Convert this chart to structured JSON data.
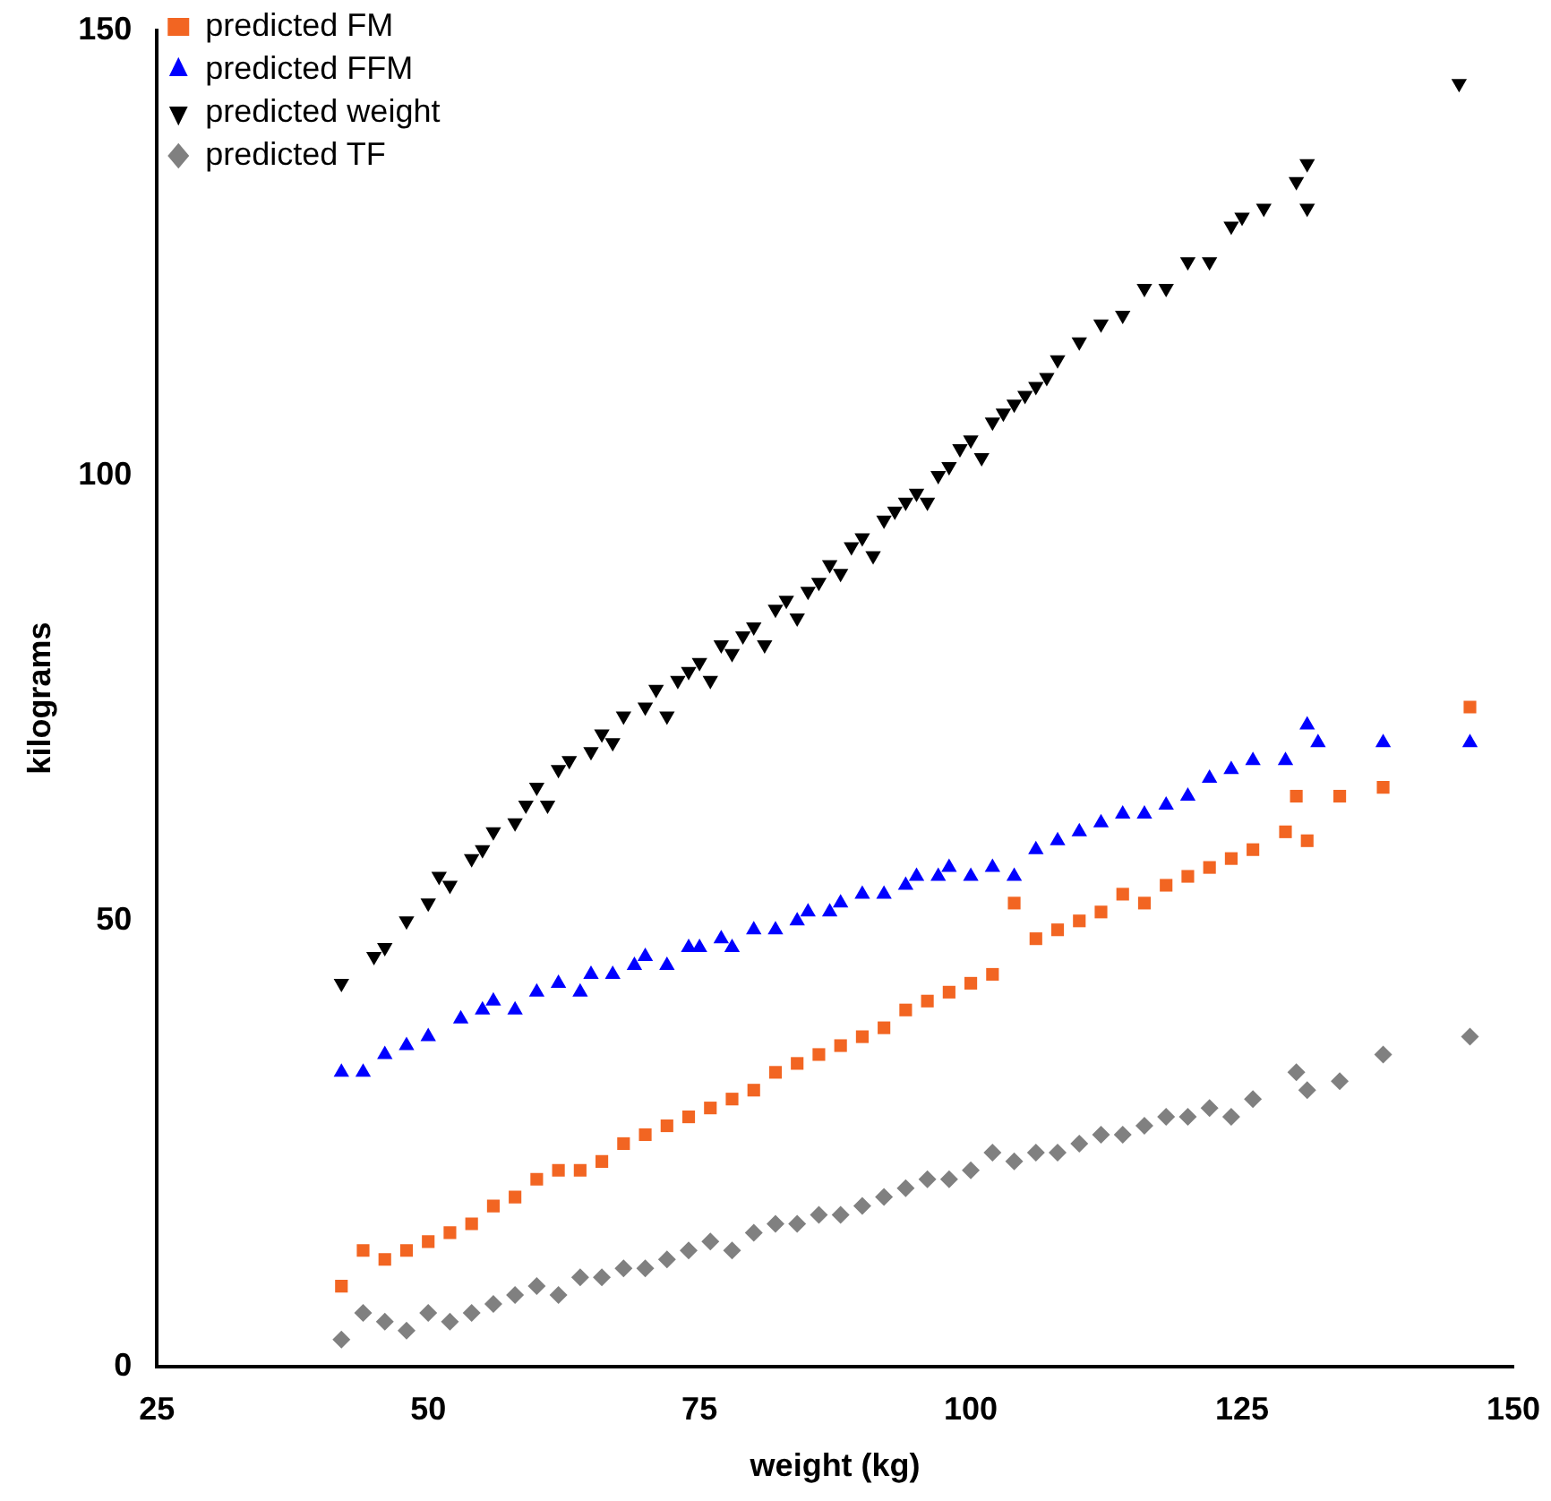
{
  "chart_data": {
    "type": "scatter",
    "xlabel": "weight (kg)",
    "ylabel": "kilograms",
    "xlim": [
      25,
      150
    ],
    "xticks": [
      25,
      50,
      75,
      100,
      125,
      150
    ],
    "ylim": [
      0,
      150
    ],
    "yticks": [
      0,
      50,
      100,
      150
    ],
    "grid": false,
    "legend": "top left",
    "series": [
      {
        "name": "predicted FM",
        "color": "#f26522",
        "marker": "square",
        "x": [
          42,
          44,
          46,
          48,
          50,
          52,
          54,
          56,
          58,
          60,
          62,
          64,
          66,
          68,
          70,
          72,
          74,
          76,
          78,
          80,
          82,
          84,
          86,
          88,
          90,
          92,
          94,
          96,
          98,
          100,
          102,
          104,
          106,
          108,
          110,
          112,
          114,
          116,
          118,
          120,
          122,
          124,
          126,
          129,
          130,
          131,
          134,
          138,
          146
        ],
        "values": [
          9,
          13,
          12,
          13,
          14,
          15,
          16,
          18,
          19,
          21,
          22,
          22,
          23,
          25,
          26,
          27,
          28,
          29,
          30,
          31,
          33,
          34,
          35,
          36,
          37,
          38,
          40,
          41,
          42,
          43,
          44,
          52,
          48,
          49,
          50,
          51,
          53,
          52,
          54,
          55,
          56,
          57,
          58,
          60,
          64,
          59,
          64,
          65,
          74
        ]
      },
      {
        "name": "predicted FFM",
        "color": "#0000ff",
        "marker": "triangle",
        "x": [
          42,
          44,
          46,
          48,
          50,
          53,
          55,
          56,
          58,
          60,
          62,
          64,
          65,
          67,
          69,
          70,
          72,
          74,
          75,
          77,
          78,
          80,
          82,
          84,
          85,
          87,
          88,
          90,
          92,
          94,
          95,
          97,
          98,
          100,
          102,
          104,
          106,
          108,
          110,
          112,
          114,
          116,
          118,
          120,
          122,
          124,
          126,
          129,
          131,
          132,
          138,
          146
        ],
        "values": [
          33,
          33,
          35,
          36,
          37,
          39,
          40,
          41,
          40,
          42,
          43,
          42,
          44,
          44,
          45,
          46,
          45,
          47,
          47,
          48,
          47,
          49,
          49,
          50,
          51,
          51,
          52,
          53,
          53,
          54,
          55,
          55,
          56,
          55,
          56,
          55,
          58,
          59,
          60,
          61,
          62,
          62,
          63,
          64,
          66,
          67,
          68,
          68,
          72,
          70,
          70,
          70
        ]
      },
      {
        "name": "predicted weight",
        "color": "#000000",
        "marker": "triangle-down",
        "x": [
          42,
          45,
          46,
          48,
          50,
          51,
          52,
          54,
          55,
          56,
          58,
          59,
          60,
          61,
          62,
          63,
          65,
          66,
          67,
          68,
          70,
          71,
          72,
          73,
          74,
          75,
          76,
          77,
          78,
          79,
          80,
          81,
          82,
          83,
          84,
          85,
          86,
          87,
          88,
          89,
          90,
          91,
          92,
          93,
          94,
          95,
          96,
          97,
          98,
          99,
          100,
          101,
          102,
          103,
          104,
          105,
          106,
          107,
          108,
          110,
          112,
          114,
          116,
          118,
          120,
          122,
          124,
          125,
          127,
          130,
          131,
          131,
          145
        ],
        "values": [
          43,
          46,
          47,
          50,
          52,
          55,
          54,
          57,
          58,
          60,
          61,
          63,
          65,
          63,
          67,
          68,
          69,
          71,
          70,
          73,
          74,
          76,
          73,
          77,
          78,
          79,
          77,
          81,
          80,
          82,
          83,
          81,
          85,
          86,
          84,
          87,
          88,
          90,
          89,
          92,
          93,
          91,
          95,
          96,
          97,
          98,
          97,
          100,
          101,
          103,
          104,
          102,
          106,
          107,
          108,
          109,
          110,
          111,
          113,
          115,
          117,
          118,
          121,
          121,
          124,
          124,
          128,
          129,
          130,
          133,
          135,
          130,
          144
        ]
      },
      {
        "name": "predicted TF",
        "color": "#808080",
        "marker": "diamond",
        "x": [
          42,
          44,
          46,
          48,
          50,
          52,
          54,
          56,
          58,
          60,
          62,
          64,
          66,
          68,
          70,
          72,
          74,
          76,
          78,
          80,
          82,
          84,
          86,
          88,
          90,
          92,
          94,
          96,
          98,
          100,
          102,
          104,
          106,
          108,
          110,
          112,
          114,
          116,
          118,
          120,
          122,
          124,
          126,
          130,
          131,
          134,
          138,
          146
        ],
        "values": [
          3,
          6,
          5,
          4,
          6,
          5,
          6,
          7,
          8,
          9,
          8,
          10,
          10,
          11,
          11,
          12,
          13,
          14,
          13,
          15,
          16,
          16,
          17,
          17,
          18,
          19,
          20,
          21,
          21,
          22,
          24,
          23,
          24,
          24,
          25,
          26,
          26,
          27,
          28,
          28,
          29,
          28,
          30,
          33,
          31,
          32,
          35,
          37
        ]
      }
    ]
  }
}
